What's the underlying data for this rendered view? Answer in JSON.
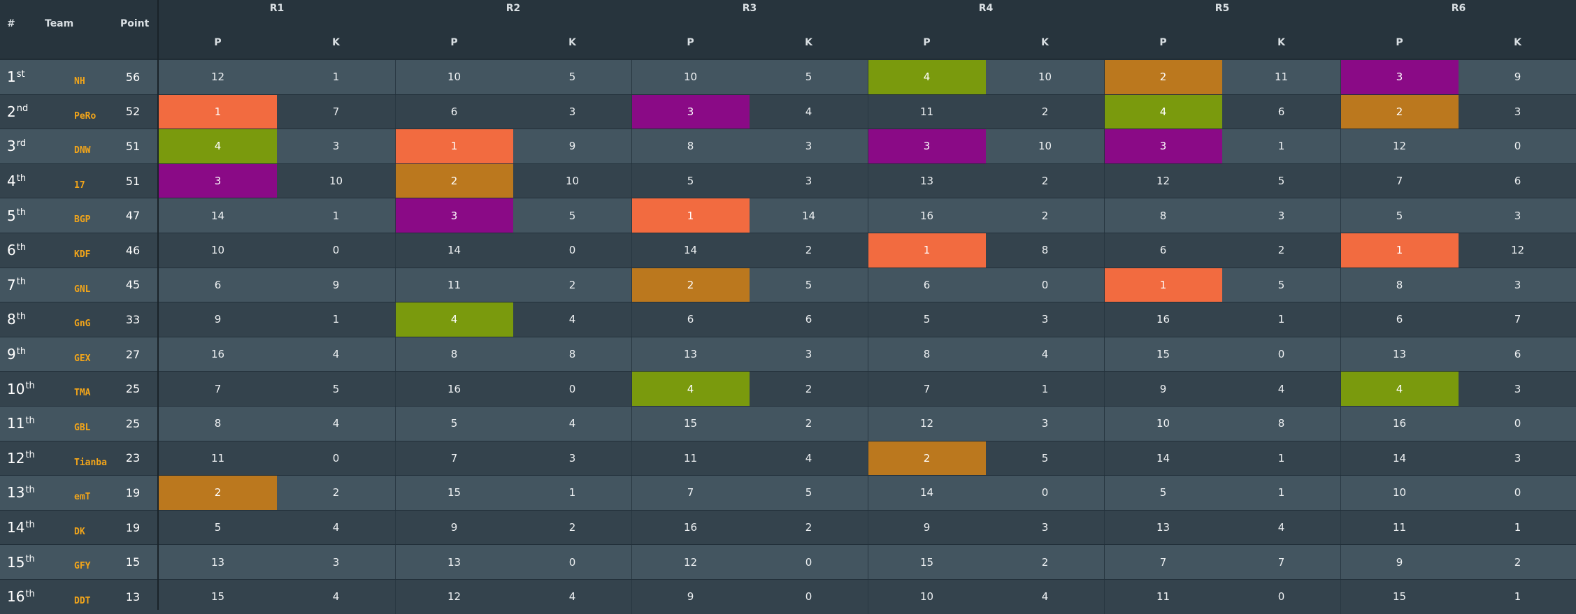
{
  "header": {
    "rank_label": "#",
    "team_label": "Team",
    "point_label": "Point",
    "rounds": [
      "R1",
      "R2",
      "R3",
      "R4",
      "R5",
      "R6"
    ],
    "p_label": "P",
    "k_label": "K"
  },
  "highlight_colors": {
    "1": "#f26b40",
    "2": "#bb781e",
    "3": "#8a0a86",
    "4": "#7a9a0d"
  },
  "rows": [
    {
      "rank": "1",
      "suffix": "st",
      "team": "NH",
      "points": "56",
      "results": [
        [
          "12",
          "1"
        ],
        [
          "10",
          "5"
        ],
        [
          "10",
          "5"
        ],
        [
          "4",
          "10"
        ],
        [
          "2",
          "11"
        ],
        [
          "3",
          "9"
        ]
      ]
    },
    {
      "rank": "2",
      "suffix": "nd",
      "team": "PeRo",
      "points": "52",
      "results": [
        [
          "1",
          "7"
        ],
        [
          "6",
          "3"
        ],
        [
          "3",
          "4"
        ],
        [
          "11",
          "2"
        ],
        [
          "4",
          "6"
        ],
        [
          "2",
          "3"
        ]
      ]
    },
    {
      "rank": "3",
      "suffix": "rd",
      "team": "DNW",
      "points": "51",
      "results": [
        [
          "4",
          "3"
        ],
        [
          "1",
          "9"
        ],
        [
          "8",
          "3"
        ],
        [
          "3",
          "10"
        ],
        [
          "3",
          "1"
        ],
        [
          "12",
          "0"
        ]
      ]
    },
    {
      "rank": "4",
      "suffix": "th",
      "team": "17",
      "points": "51",
      "results": [
        [
          "3",
          "10"
        ],
        [
          "2",
          "10"
        ],
        [
          "5",
          "3"
        ],
        [
          "13",
          "2"
        ],
        [
          "12",
          "5"
        ],
        [
          "7",
          "6"
        ]
      ]
    },
    {
      "rank": "5",
      "suffix": "th",
      "team": "BGP",
      "points": "47",
      "results": [
        [
          "14",
          "1"
        ],
        [
          "3",
          "5"
        ],
        [
          "1",
          "14"
        ],
        [
          "16",
          "2"
        ],
        [
          "8",
          "3"
        ],
        [
          "5",
          "3"
        ]
      ]
    },
    {
      "rank": "6",
      "suffix": "th",
      "team": "KDF",
      "points": "46",
      "results": [
        [
          "10",
          "0"
        ],
        [
          "14",
          "0"
        ],
        [
          "14",
          "2"
        ],
        [
          "1",
          "8"
        ],
        [
          "6",
          "2"
        ],
        [
          "1",
          "12"
        ]
      ]
    },
    {
      "rank": "7",
      "suffix": "th",
      "team": "GNL",
      "points": "45",
      "results": [
        [
          "6",
          "9"
        ],
        [
          "11",
          "2"
        ],
        [
          "2",
          "5"
        ],
        [
          "6",
          "0"
        ],
        [
          "1",
          "5"
        ],
        [
          "8",
          "3"
        ]
      ]
    },
    {
      "rank": "8",
      "suffix": "th",
      "team": "GnG",
      "points": "33",
      "results": [
        [
          "9",
          "1"
        ],
        [
          "4",
          "4"
        ],
        [
          "6",
          "6"
        ],
        [
          "5",
          "3"
        ],
        [
          "16",
          "1"
        ],
        [
          "6",
          "7"
        ]
      ]
    },
    {
      "rank": "9",
      "suffix": "th",
      "team": "GEX",
      "points": "27",
      "results": [
        [
          "16",
          "4"
        ],
        [
          "8",
          "8"
        ],
        [
          "13",
          "3"
        ],
        [
          "8",
          "4"
        ],
        [
          "15",
          "0"
        ],
        [
          "13",
          "6"
        ]
      ]
    },
    {
      "rank": "10",
      "suffix": "th",
      "team": "TMA",
      "points": "25",
      "results": [
        [
          "7",
          "5"
        ],
        [
          "16",
          "0"
        ],
        [
          "4",
          "2"
        ],
        [
          "7",
          "1"
        ],
        [
          "9",
          "4"
        ],
        [
          "4",
          "3"
        ]
      ]
    },
    {
      "rank": "11",
      "suffix": "th",
      "team": "GBL",
      "points": "25",
      "results": [
        [
          "8",
          "4"
        ],
        [
          "5",
          "4"
        ],
        [
          "15",
          "2"
        ],
        [
          "12",
          "3"
        ],
        [
          "10",
          "8"
        ],
        [
          "16",
          "0"
        ]
      ]
    },
    {
      "rank": "12",
      "suffix": "th",
      "team": "Tianba",
      "points": "23",
      "results": [
        [
          "11",
          "0"
        ],
        [
          "7",
          "3"
        ],
        [
          "11",
          "4"
        ],
        [
          "2",
          "5"
        ],
        [
          "14",
          "1"
        ],
        [
          "14",
          "3"
        ]
      ]
    },
    {
      "rank": "13",
      "suffix": "th",
      "team": "emT",
      "points": "19",
      "results": [
        [
          "2",
          "2"
        ],
        [
          "15",
          "1"
        ],
        [
          "7",
          "5"
        ],
        [
          "14",
          "0"
        ],
        [
          "5",
          "1"
        ],
        [
          "10",
          "0"
        ]
      ]
    },
    {
      "rank": "14",
      "suffix": "th",
      "team": "DK",
      "points": "19",
      "results": [
        [
          "5",
          "4"
        ],
        [
          "9",
          "2"
        ],
        [
          "16",
          "2"
        ],
        [
          "9",
          "3"
        ],
        [
          "13",
          "4"
        ],
        [
          "11",
          "1"
        ]
      ]
    },
    {
      "rank": "15",
      "suffix": "th",
      "team": "GFY",
      "points": "15",
      "results": [
        [
          "13",
          "3"
        ],
        [
          "13",
          "0"
        ],
        [
          "12",
          "0"
        ],
        [
          "15",
          "2"
        ],
        [
          "7",
          "7"
        ],
        [
          "9",
          "2"
        ]
      ]
    },
    {
      "rank": "16",
      "suffix": "th",
      "team": "DDT",
      "points": "13",
      "results": [
        [
          "15",
          "4"
        ],
        [
          "12",
          "4"
        ],
        [
          "9",
          "0"
        ],
        [
          "10",
          "4"
        ],
        [
          "11",
          "0"
        ],
        [
          "15",
          "1"
        ]
      ]
    }
  ]
}
